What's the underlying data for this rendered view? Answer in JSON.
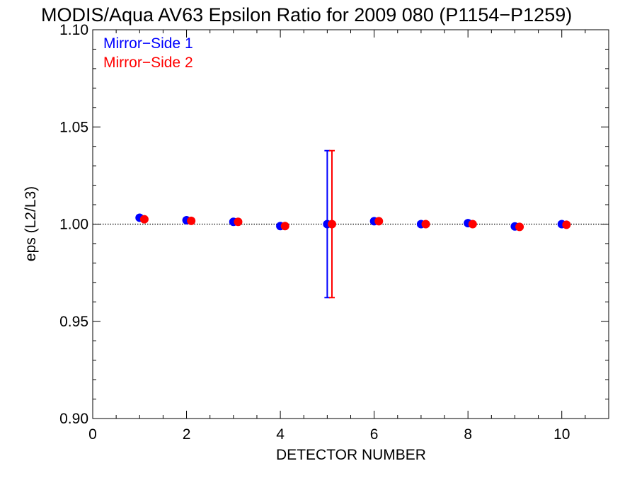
{
  "chart_data": {
    "type": "scatter",
    "title": "MODIS/Aqua AV63 Epsilon Ratio for 2009 080 (P1154−P1259)",
    "xlabel": "DETECTOR NUMBER",
    "ylabel": "eps (L2/L3)",
    "xlim": [
      0,
      11
    ],
    "ylim": [
      0.9,
      1.1
    ],
    "xticks": [
      0,
      2,
      4,
      6,
      8,
      10
    ],
    "xtick_labels": [
      "0",
      "2",
      "4",
      "6",
      "8",
      "10"
    ],
    "yticks": [
      0.9,
      0.95,
      1.0,
      1.05,
      1.1
    ],
    "ytick_labels": [
      "0.90",
      "0.95",
      "1.00",
      "1.05",
      "1.10"
    ],
    "reference_line": 1.0,
    "legend_position": "top-left",
    "series": [
      {
        "name": "Mirror−Side 1",
        "color": "#0000ff",
        "x": [
          1,
          2,
          3,
          4,
          5,
          6,
          7,
          8,
          9,
          10
        ],
        "y": [
          1.0033,
          1.002,
          1.0012,
          0.999,
          1.0,
          1.0015,
          1.0,
          1.0005,
          0.9988,
          1.0
        ],
        "error": [
          null,
          null,
          null,
          null,
          0.0378,
          null,
          null,
          null,
          null,
          null
        ]
      },
      {
        "name": "Mirror−Side 2",
        "color": "#ff0000",
        "x": [
          1.1,
          2.1,
          3.1,
          4.1,
          5.1,
          6.1,
          7.1,
          8.1,
          9.1,
          10.1
        ],
        "y": [
          1.0025,
          1.0017,
          1.0012,
          0.999,
          1.0,
          1.0015,
          1.0,
          1.0,
          0.9986,
          0.9997
        ],
        "error": [
          null,
          null,
          null,
          null,
          0.0378,
          null,
          null,
          null,
          null,
          null
        ]
      }
    ]
  }
}
